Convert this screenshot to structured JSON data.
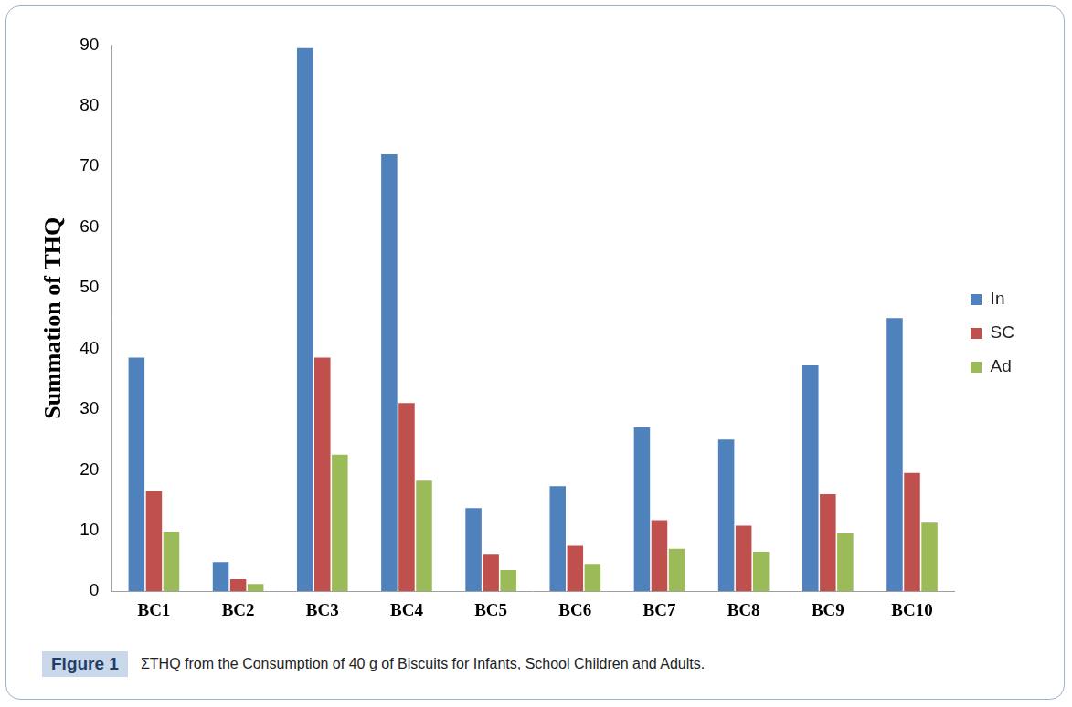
{
  "chart_data": {
    "type": "bar",
    "y_label": "Summation of THQ",
    "categories": [
      "BC1",
      "BC2",
      "BC3",
      "BC4",
      "BC5",
      "BC6",
      "BC7",
      "BC8",
      "BC9",
      "BC10"
    ],
    "series": [
      {
        "name": "In",
        "color": "#4f81bd",
        "values": [
          38.5,
          4.8,
          89.5,
          72,
          13.7,
          17.3,
          27,
          25,
          37.2,
          45
        ]
      },
      {
        "name": "SC",
        "color": "#c0504d",
        "values": [
          16.5,
          2.0,
          38.5,
          31,
          6.0,
          7.5,
          11.7,
          10.8,
          16,
          19.5
        ]
      },
      {
        "name": "Ad",
        "color": "#9bbb59",
        "values": [
          9.8,
          1.2,
          22.5,
          18.2,
          3.5,
          4.5,
          7.0,
          6.5,
          9.5,
          11.3
        ]
      }
    ],
    "ylim": [
      0,
      90
    ],
    "yticks": [
      0,
      10,
      20,
      30,
      40,
      50,
      60,
      70,
      80,
      90
    ],
    "grid": false,
    "legend": "right"
  },
  "caption": {
    "label": "Figure 1",
    "text": "ΣTHQ from the Consumption of 40 g of Biscuits for Infants, School Children and Adults."
  }
}
